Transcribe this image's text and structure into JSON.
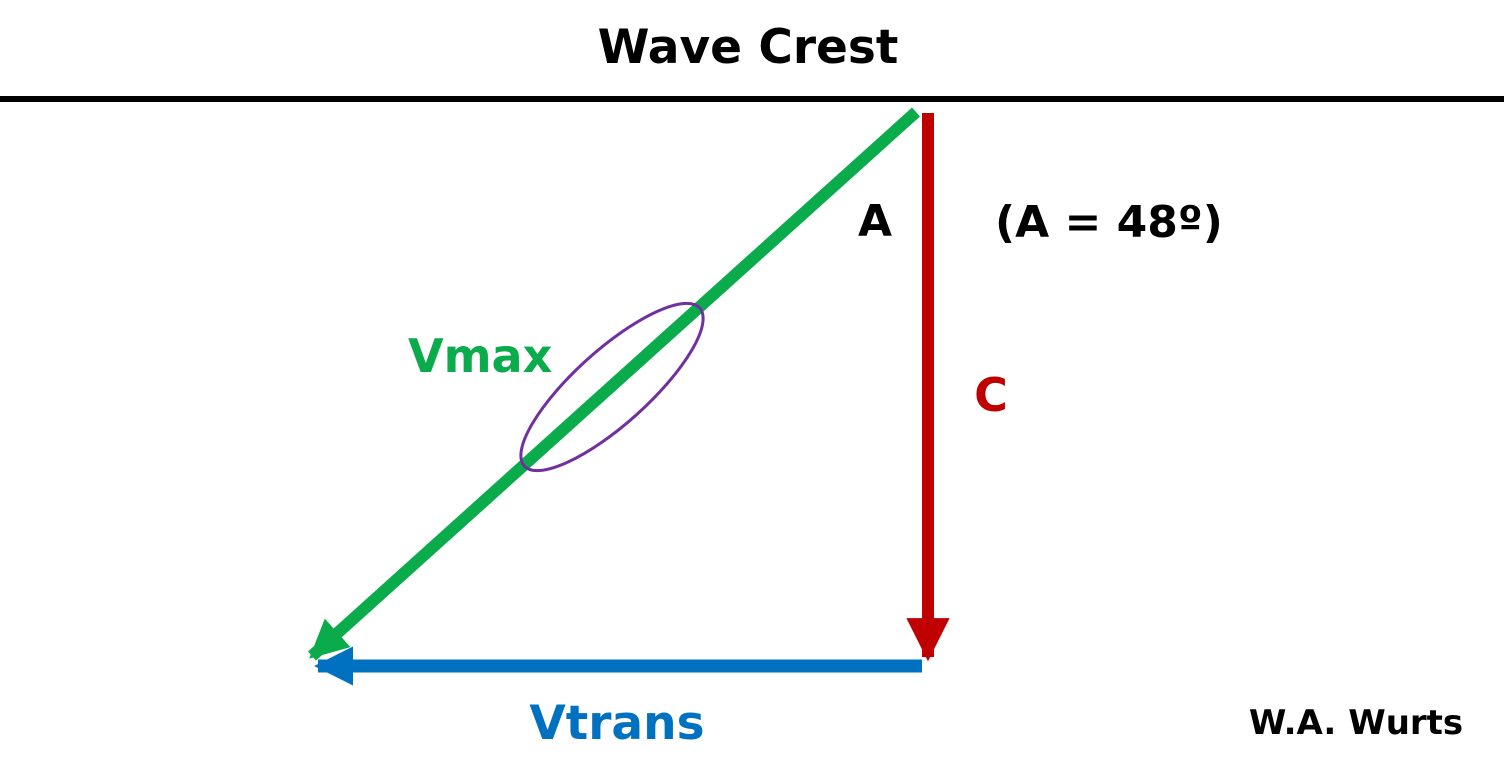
{
  "title": "Wave Crest",
  "labels": {
    "angle": "A",
    "angle_note": "(A = 48º)",
    "vmax": "Vmax",
    "c": "C",
    "vtrans": "Vtrans",
    "author": "W.A. Wurts"
  },
  "colors": {
    "vmax": "#0aab4b",
    "c": "#c00000",
    "vtrans": "#0070c0",
    "ellipse": "#7030a0",
    "text": "#000000"
  }
}
